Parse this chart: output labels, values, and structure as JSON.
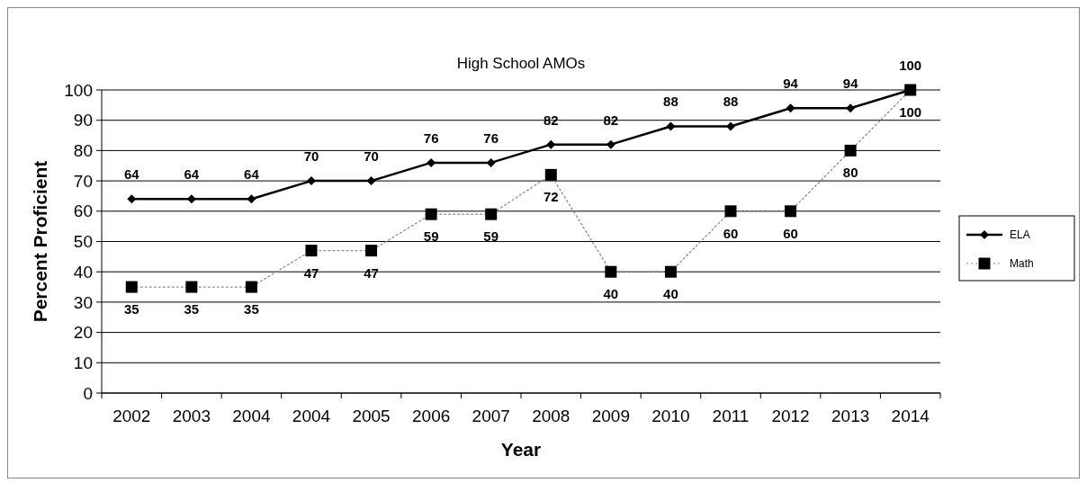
{
  "chart_data": {
    "type": "line",
    "title": "High School AMOs",
    "xlabel": "Year",
    "ylabel": "Percent Proficient",
    "categories": [
      "2002",
      "2003",
      "2004",
      "2004",
      "2005",
      "2006",
      "2007",
      "2008",
      "2009",
      "2010",
      "2011",
      "2012",
      "2013",
      "2014"
    ],
    "series": [
      {
        "name": "ELA",
        "color": "#000000",
        "marker": "diamond",
        "line_style": "solid",
        "values": [
          64,
          64,
          64,
          70,
          70,
          76,
          76,
          82,
          82,
          88,
          88,
          94,
          94,
          100
        ]
      },
      {
        "name": "Math",
        "color": "#000000",
        "marker": "square",
        "line_style": "dotted",
        "values": [
          35,
          35,
          35,
          47,
          47,
          59,
          59,
          72,
          40,
          40,
          60,
          60,
          80,
          100
        ]
      }
    ],
    "ylim": [
      0,
      100
    ],
    "yticks": [
      0,
      10,
      20,
      30,
      40,
      50,
      60,
      70,
      80,
      90,
      100
    ],
    "grid": "y",
    "legend": "right",
    "data_labels": true
  }
}
